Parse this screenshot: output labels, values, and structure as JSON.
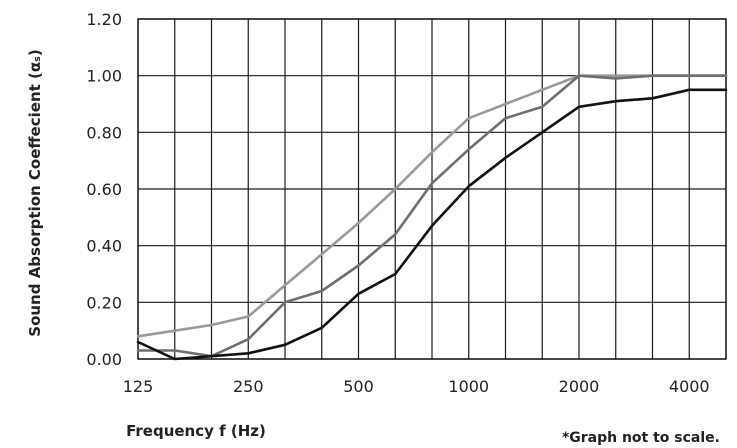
{
  "chart_data": {
    "type": "line",
    "xlabel": "Frequency f (Hz)",
    "ylabel": "Sound Absorption Coeffecient (αₛ)",
    "note": "*Graph not to scale.",
    "x": [
      125,
      160,
      200,
      250,
      315,
      400,
      500,
      630,
      800,
      1000,
      1250,
      1600,
      2000,
      2500,
      3150,
      4000,
      5000
    ],
    "x_tick_labels": [
      "125",
      "250",
      "500",
      "1000",
      "2000",
      "4000"
    ],
    "x_tick_values": [
      125,
      250,
      500,
      1000,
      2000,
      4000
    ],
    "y_tick_labels": [
      "0.00",
      "0.20",
      "0.40",
      "0.60",
      "0.80",
      "1.00",
      "1.20"
    ],
    "y_tick_values": [
      0,
      0.2,
      0.4,
      0.6,
      0.8,
      1.0,
      1.2
    ],
    "ylim": [
      0,
      1.2
    ],
    "grid": true,
    "series": [
      {
        "color": "#999999",
        "values": [
          0.08,
          0.1,
          0.12,
          0.15,
          0.26,
          0.37,
          0.48,
          0.6,
          0.73,
          0.85,
          0.9,
          0.95,
          1.0,
          1.0,
          1.0,
          1.0,
          1.0
        ]
      },
      {
        "color": "#6e6e6e",
        "values": [
          0.03,
          0.03,
          0.01,
          0.07,
          0.2,
          0.24,
          0.33,
          0.44,
          0.62,
          0.74,
          0.85,
          0.89,
          1.0,
          0.99,
          1.0,
          1.0,
          1.0
        ]
      },
      {
        "color": "#111111",
        "values": [
          0.06,
          0.0,
          0.01,
          0.02,
          0.05,
          0.11,
          0.23,
          0.3,
          0.47,
          0.61,
          0.71,
          0.8,
          0.89,
          0.91,
          0.92,
          0.95,
          0.95
        ]
      }
    ]
  }
}
